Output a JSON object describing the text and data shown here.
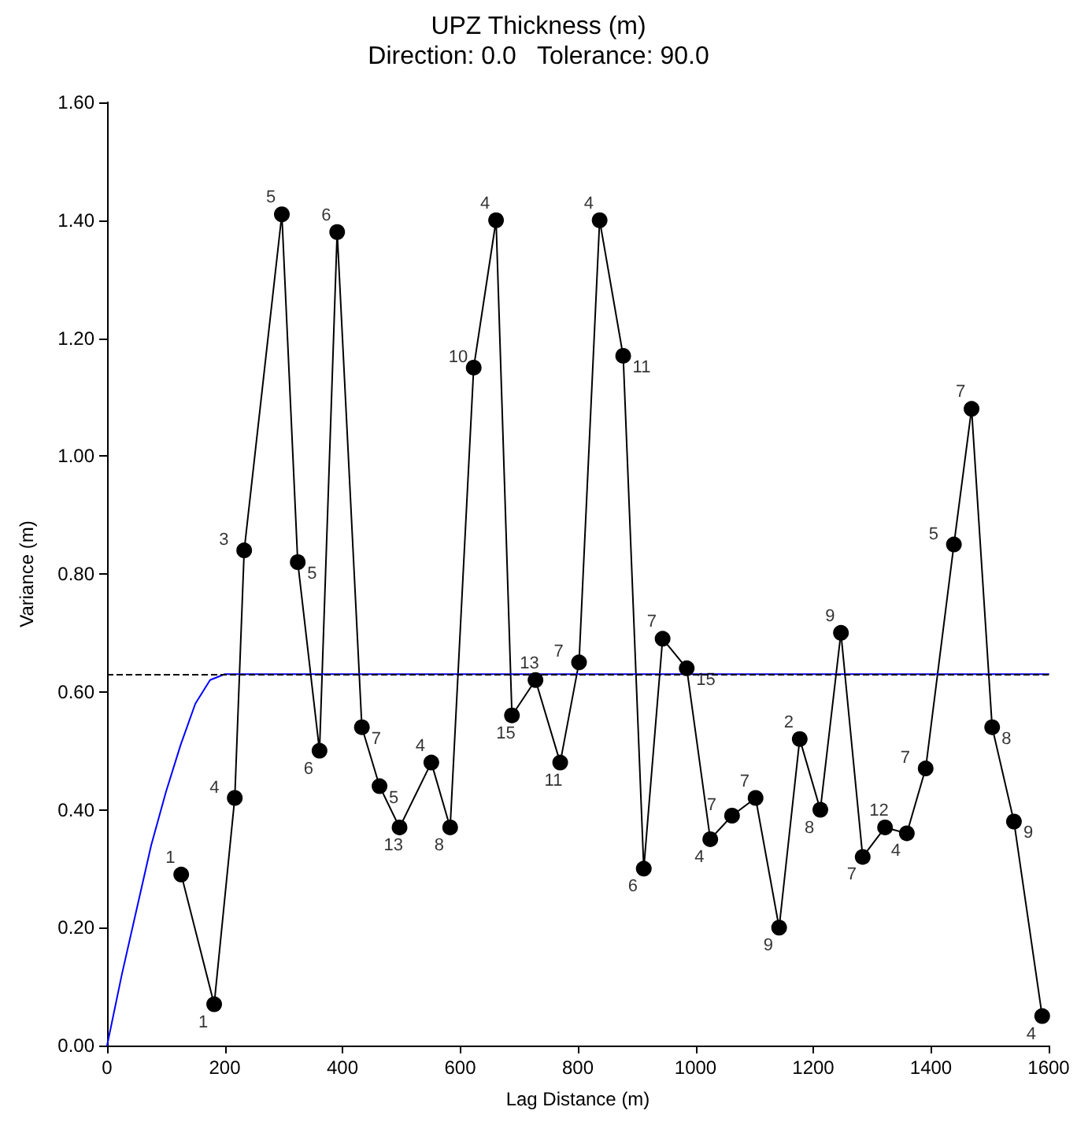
{
  "chart_data": {
    "type": "line",
    "title": "UPZ Thickness (m)",
    "subtitle": "Direction: 0.0   Tolerance: 90.0",
    "xlabel": "Lag Distance (m)",
    "ylabel": "Variance (m)",
    "xlim": [
      0,
      1600
    ],
    "xticks": [
      0,
      200,
      400,
      600,
      800,
      1000,
      1200,
      1400,
      1600
    ],
    "ylim": [
      0,
      1.6
    ],
    "yticks": [
      {
        "value": 0,
        "label": "0.00"
      },
      {
        "value": 0.2,
        "label": "0.20"
      },
      {
        "value": 0.4,
        "label": "0.40"
      },
      {
        "value": 0.6,
        "label": "0.60"
      },
      {
        "value": 0.8,
        "label": "0.80"
      },
      {
        "value": 1,
        "label": "1.00"
      },
      {
        "value": 1.2,
        "label": "1.20"
      },
      {
        "value": 1.4,
        "label": "1.40"
      },
      {
        "value": 1.6,
        "label": "1.60"
      }
    ],
    "grid": false,
    "line_style": "solid",
    "series": [
      {
        "color": "#000000",
        "marker": "circle",
        "x": [
          126,
          182,
          217,
          233,
          297,
          324,
          361,
          391,
          433,
          463,
          497,
          551,
          583,
          623,
          661,
          688,
          728,
          770,
          802,
          837,
          877,
          912,
          944,
          985,
          1025,
          1062,
          1102,
          1142,
          1177,
          1212,
          1247,
          1284,
          1322,
          1359,
          1391,
          1439,
          1469,
          1504,
          1541,
          1589
        ],
        "values": [
          0.29,
          0.07,
          0.42,
          0.84,
          1.41,
          0.82,
          0.5,
          1.38,
          0.54,
          0.44,
          0.37,
          0.48,
          0.37,
          1.15,
          1.4,
          0.56,
          0.62,
          0.48,
          0.65,
          1.4,
          1.17,
          0.3,
          0.69,
          0.64,
          0.35,
          0.39,
          0.42,
          0.2,
          0.52,
          0.4,
          0.7,
          0.32,
          0.37,
          0.36,
          0.47,
          0.85,
          1.08,
          0.54,
          0.38,
          0.05
        ]
      },
      {
        "color": "#0000ff",
        "marker": "none",
        "x": [
          0,
          25,
          50,
          75,
          100,
          125,
          150,
          175,
          200,
          1600
        ],
        "values": [
          0,
          0.12,
          0.23,
          0.34,
          0.43,
          0.51,
          0.58,
          0.62,
          0.63,
          0.63
        ]
      }
    ],
    "ref_lines": [
      {
        "axis": "y",
        "value": 0.63,
        "color": "#000000",
        "line_style": "dashed"
      }
    ],
    "annotations": [
      {
        "text": "1",
        "x": 126,
        "y": 0.29
      },
      {
        "text": "1",
        "x": 182,
        "y": 0.07
      },
      {
        "text": "4",
        "x": 217,
        "y": 0.42
      },
      {
        "text": "3",
        "x": 233,
        "y": 0.84
      },
      {
        "text": "5",
        "x": 297,
        "y": 1.41
      },
      {
        "text": "5",
        "x": 324,
        "y": 0.82
      },
      {
        "text": "6",
        "x": 361,
        "y": 0.5
      },
      {
        "text": "6",
        "x": 391,
        "y": 1.38
      },
      {
        "text": "7",
        "x": 433,
        "y": 0.54
      },
      {
        "text": "5",
        "x": 463,
        "y": 0.44
      },
      {
        "text": "13",
        "x": 497,
        "y": 0.37
      },
      {
        "text": "4",
        "x": 551,
        "y": 0.48
      },
      {
        "text": "8",
        "x": 583,
        "y": 0.37
      },
      {
        "text": "10",
        "x": 623,
        "y": 1.15
      },
      {
        "text": "4",
        "x": 661,
        "y": 1.4
      },
      {
        "text": "15",
        "x": 688,
        "y": 0.56
      },
      {
        "text": "13",
        "x": 728,
        "y": 0.62
      },
      {
        "text": "11",
        "x": 770,
        "y": 0.48
      },
      {
        "text": "7",
        "x": 802,
        "y": 0.65
      },
      {
        "text": "4",
        "x": 837,
        "y": 1.4
      },
      {
        "text": "11",
        "x": 877,
        "y": 1.17
      },
      {
        "text": "6",
        "x": 912,
        "y": 0.3
      },
      {
        "text": "7",
        "x": 944,
        "y": 0.69
      },
      {
        "text": "15",
        "x": 985,
        "y": 0.64
      },
      {
        "text": "4",
        "x": 1025,
        "y": 0.35
      },
      {
        "text": "7",
        "x": 1062,
        "y": 0.39
      },
      {
        "text": "7",
        "x": 1102,
        "y": 0.42
      },
      {
        "text": "9",
        "x": 1142,
        "y": 0.2
      },
      {
        "text": "2",
        "x": 1177,
        "y": 0.52
      },
      {
        "text": "8",
        "x": 1212,
        "y": 0.4
      },
      {
        "text": "9",
        "x": 1247,
        "y": 0.7
      },
      {
        "text": "7",
        "x": 1284,
        "y": 0.32
      },
      {
        "text": "12",
        "x": 1322,
        "y": 0.37
      },
      {
        "text": "4",
        "x": 1359,
        "y": 0.36
      },
      {
        "text": "7",
        "x": 1391,
        "y": 0.47
      },
      {
        "text": "5",
        "x": 1439,
        "y": 0.85
      },
      {
        "text": "7",
        "x": 1469,
        "y": 1.08
      },
      {
        "text": "8",
        "x": 1504,
        "y": 0.54
      },
      {
        "text": "9",
        "x": 1541,
        "y": 0.38
      },
      {
        "text": "4",
        "x": 1589,
        "y": 0.05
      }
    ]
  }
}
